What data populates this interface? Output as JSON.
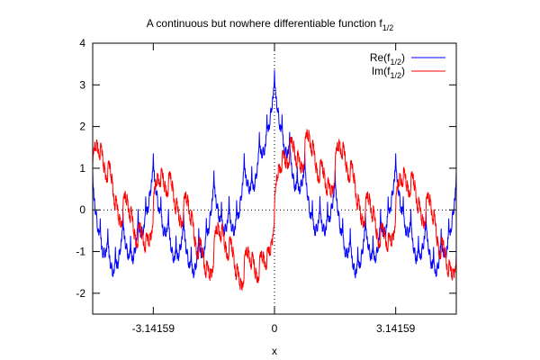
{
  "chart_data": {
    "type": "line",
    "title": {
      "main": "A continuous but nowhere differentiable function f",
      "sub": "1/2"
    },
    "xlabel": "x",
    "ylabel": "",
    "xlim": [
      -4.712,
      4.712
    ],
    "ylim": [
      -2.5,
      4
    ],
    "x_ticks": [
      {
        "value": -3.14159,
        "label": "-3.14159"
      },
      {
        "value": 0,
        "label": "0"
      },
      {
        "value": 3.14159,
        "label": "3.14159"
      }
    ],
    "y_ticks": [
      {
        "value": -2,
        "label": "-2"
      },
      {
        "value": -1,
        "label": "-1"
      },
      {
        "value": 0,
        "label": "0"
      },
      {
        "value": 1,
        "label": "1"
      },
      {
        "value": 2,
        "label": "2"
      },
      {
        "value": 3,
        "label": "3"
      },
      {
        "value": 4,
        "label": "4"
      }
    ],
    "zero_axes": "dotted",
    "legend_position": "top-right",
    "series": [
      {
        "label": "Re(f",
        "label_sub": "1/2",
        "label_end": ")",
        "color": "#0000ff",
        "function": "weierstrass-cos",
        "alpha": 0.5
      },
      {
        "label": "Im(f",
        "label_sub": "1/2",
        "label_end": ")",
        "color": "#ff0000",
        "function": "weierstrass-sin",
        "alpha": 0.5
      }
    ]
  }
}
